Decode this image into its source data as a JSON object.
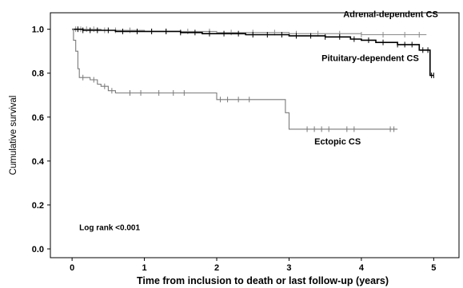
{
  "chart_data": {
    "type": "line",
    "step": true,
    "xlabel": "Time from inclusion to death or last follow-up (years)",
    "ylabel": "Cumulative survival",
    "xlim": [
      -0.3,
      5.35
    ],
    "ylim": [
      -0.04,
      1.075
    ],
    "xticks": [
      "0",
      "1",
      "2",
      "3",
      "4",
      "5"
    ],
    "yticks": [
      "0.0",
      "0.2",
      "0.4",
      "0.6",
      "0.8",
      "1.0"
    ],
    "grid": false,
    "annotations": [
      {
        "text": "Log rank <0.001",
        "x": 0.1,
        "y": 0.085
      }
    ],
    "series": [
      {
        "name": "Adrenal-dependent CS",
        "label_position": {
          "x": 3.75,
          "y": 1.055
        },
        "color": "#8a8a8a",
        "points": [
          [
            0,
            1.0
          ],
          [
            0.4,
            0.995
          ],
          [
            1.0,
            0.99
          ],
          [
            2.0,
            0.985
          ],
          [
            3.0,
            0.98
          ],
          [
            4.0,
            0.975
          ],
          [
            4.9,
            0.975
          ]
        ],
        "censor_marks": [
          0.05,
          0.12,
          0.2,
          0.3,
          0.45,
          0.6,
          0.8,
          1.1,
          1.3,
          1.6,
          1.9,
          2.2,
          2.5,
          2.8,
          3.1,
          3.4,
          3.7,
          4.0,
          4.3,
          4.6,
          4.8
        ]
      },
      {
        "name": "Pituitary-dependent CS",
        "label_position": {
          "x": 3.45,
          "y": 0.855
        },
        "color": "#000000",
        "points": [
          [
            0,
            1.0
          ],
          [
            0.15,
            0.995
          ],
          [
            0.6,
            0.99
          ],
          [
            1.5,
            0.985
          ],
          [
            1.8,
            0.98
          ],
          [
            2.4,
            0.975
          ],
          [
            3.0,
            0.97
          ],
          [
            3.5,
            0.965
          ],
          [
            3.85,
            0.955
          ],
          [
            4.0,
            0.95
          ],
          [
            4.2,
            0.94
          ],
          [
            4.5,
            0.93
          ],
          [
            4.8,
            0.905
          ],
          [
            4.95,
            0.79
          ],
          [
            5.0,
            0.79
          ]
        ],
        "censor_marks": [
          0.08,
          0.15,
          0.25,
          0.35,
          0.5,
          0.7,
          0.9,
          1.1,
          1.3,
          1.5,
          1.7,
          1.9,
          2.1,
          2.3,
          2.5,
          2.7,
          2.9,
          3.1,
          3.3,
          3.5,
          3.7,
          3.9,
          4.1,
          4.3,
          4.5,
          4.6,
          4.7,
          4.85,
          4.92,
          4.97,
          5.0
        ]
      },
      {
        "name": "Ectopic CS",
        "label_position": {
          "x": 3.35,
          "y": 0.475
        },
        "color": "#7a7a7a",
        "points": [
          [
            0,
            1.0
          ],
          [
            0.02,
            0.95
          ],
          [
            0.05,
            0.9
          ],
          [
            0.08,
            0.82
          ],
          [
            0.1,
            0.78
          ],
          [
            0.25,
            0.77
          ],
          [
            0.35,
            0.75
          ],
          [
            0.4,
            0.74
          ],
          [
            0.5,
            0.72
          ],
          [
            0.6,
            0.71
          ],
          [
            2.0,
            0.68
          ],
          [
            2.95,
            0.62
          ],
          [
            3.0,
            0.545
          ],
          [
            4.5,
            0.545
          ]
        ],
        "censor_marks": [
          0.15,
          0.3,
          0.45,
          0.55,
          0.8,
          0.95,
          1.2,
          1.4,
          1.55,
          2.05,
          2.15,
          2.3,
          2.45,
          3.25,
          3.35,
          3.45,
          3.55,
          3.8,
          3.9,
          4.4,
          4.45
        ]
      }
    ]
  }
}
